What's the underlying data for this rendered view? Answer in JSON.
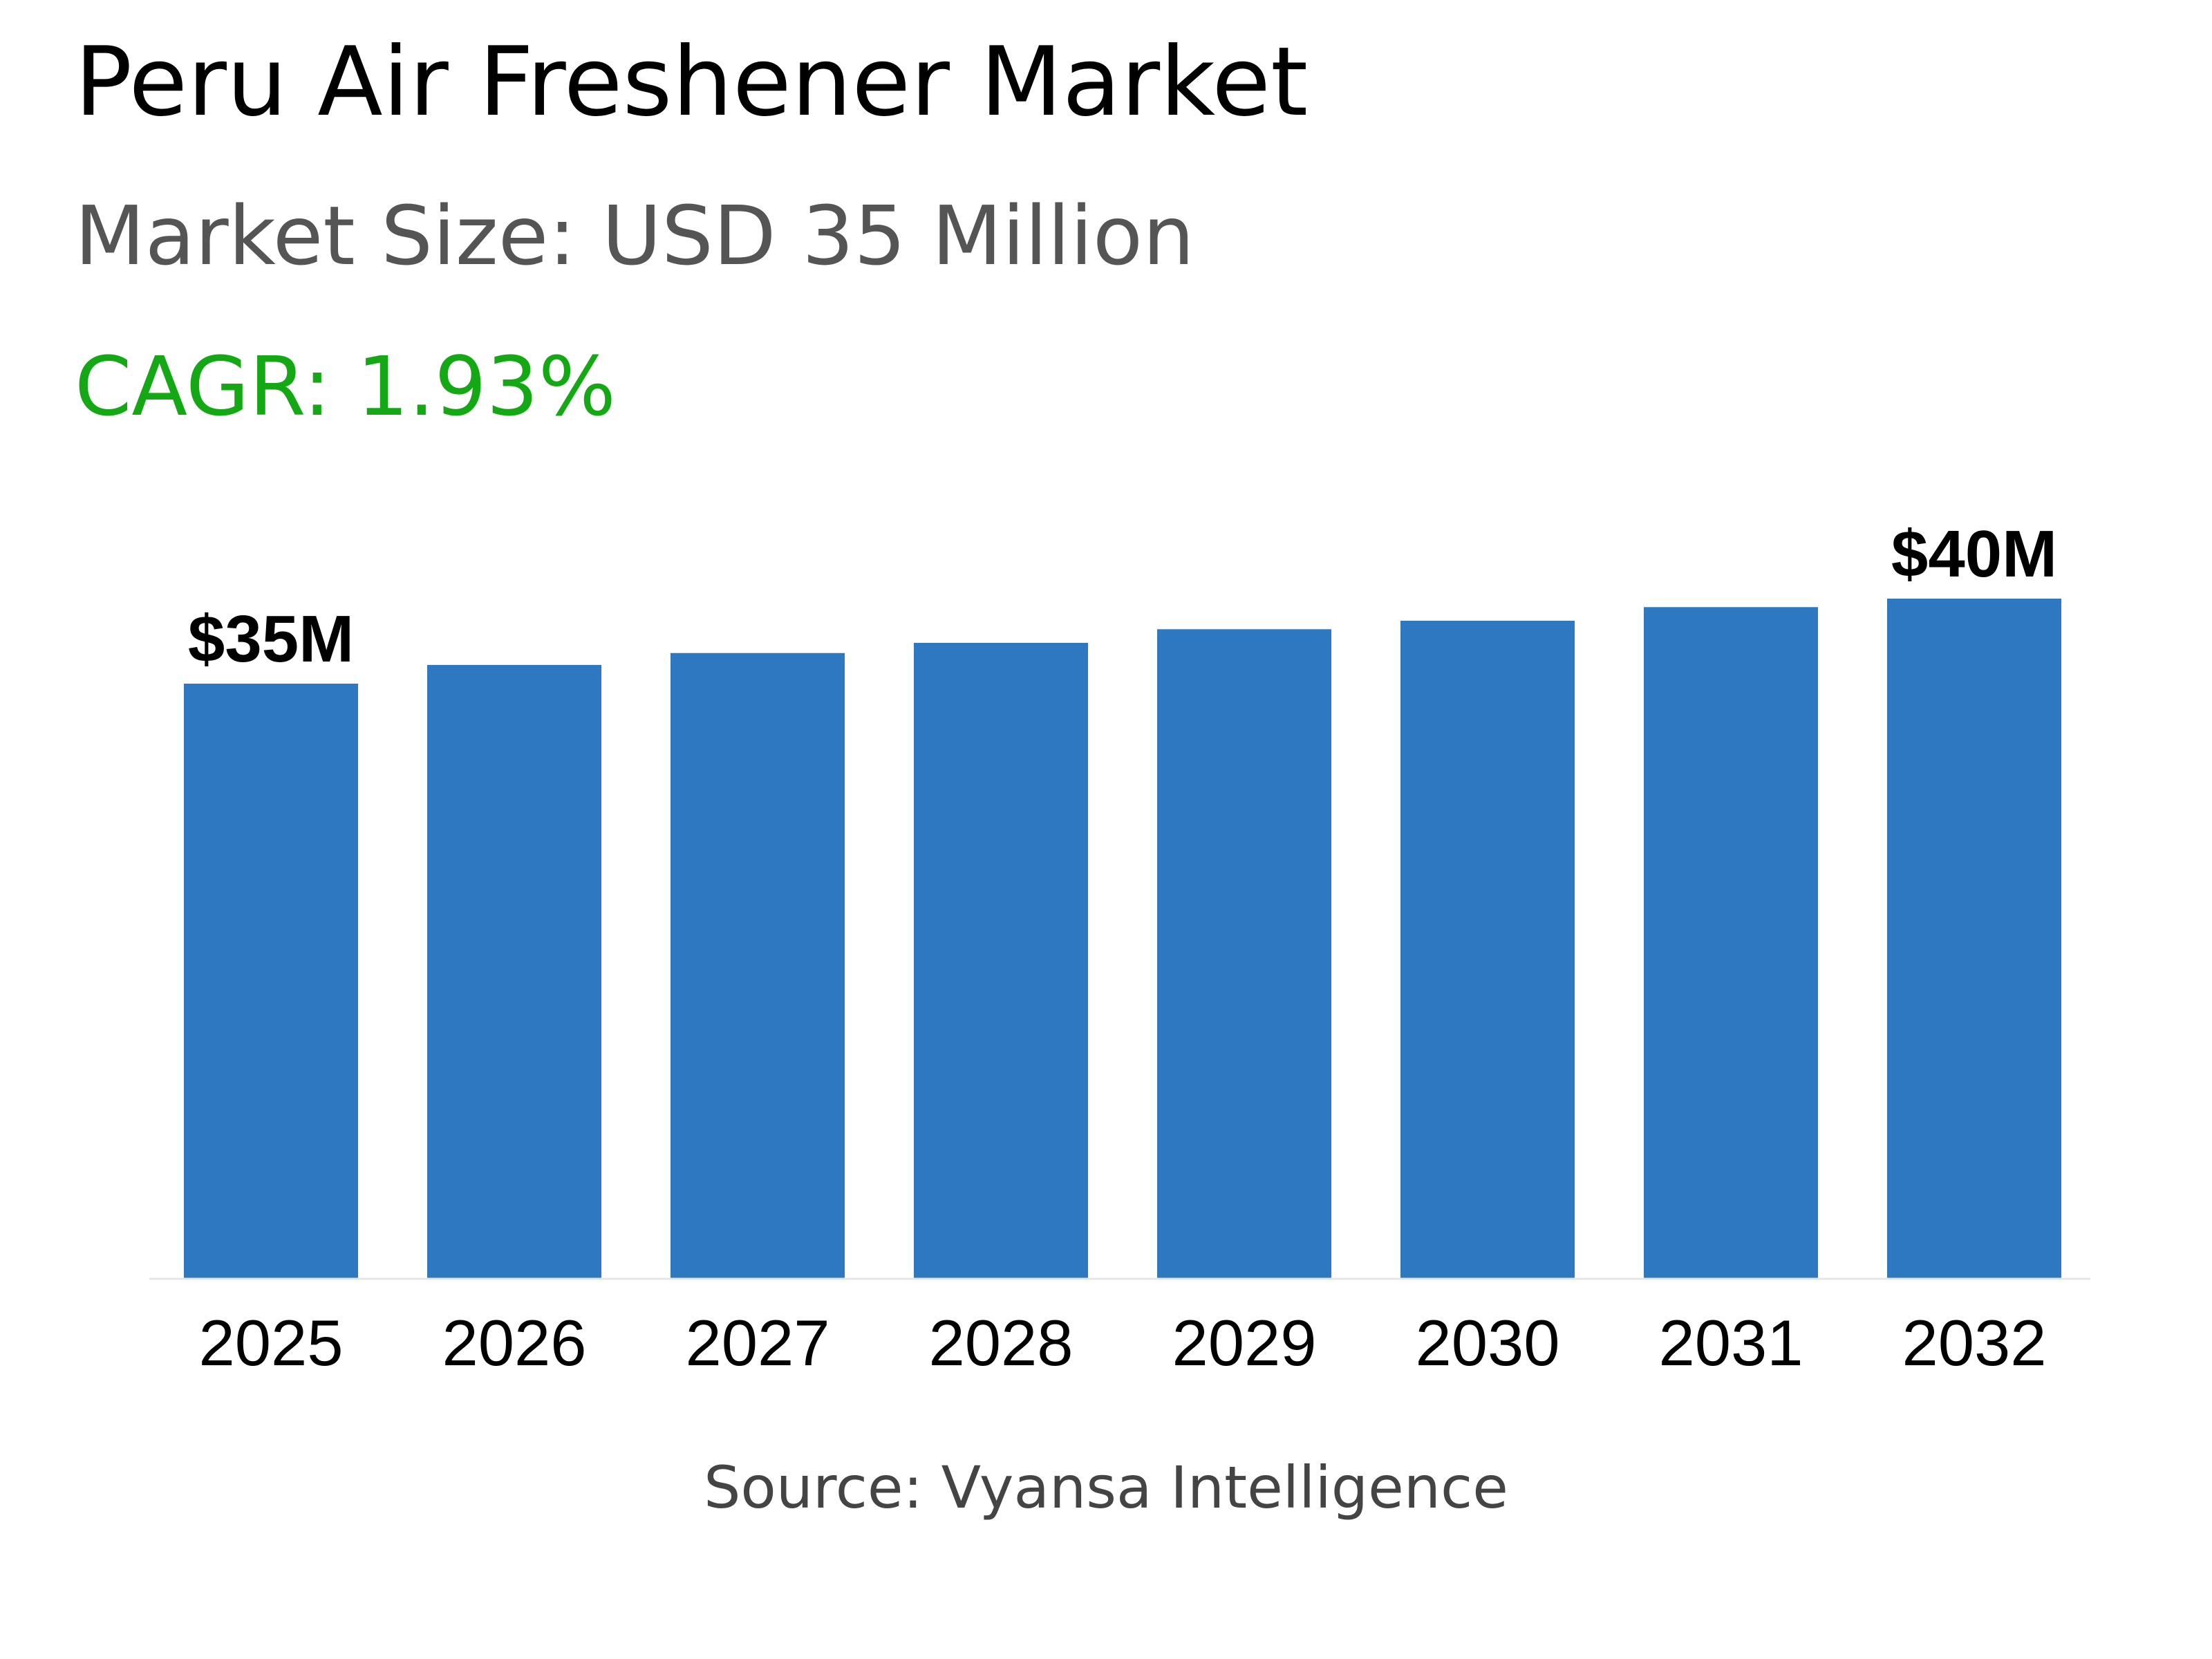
{
  "header": {
    "title": "Peru Air Freshener Market",
    "market_size": "Market Size: USD 35 Million",
    "cagr": "CAGR: 1.93%"
  },
  "footer": {
    "source": "Source: Vyansa Intelligence"
  },
  "colors": {
    "bar": "#2D78C0",
    "cagr": "#14A814",
    "label": "#000000",
    "baseline": "#E6E6E6"
  },
  "chart_data": {
    "type": "bar",
    "categories": [
      "2025",
      "2026",
      "2027",
      "2028",
      "2029",
      "2030",
      "2031",
      "2032"
    ],
    "values": [
      35,
      36.1,
      36.8,
      37.4,
      38.2,
      38.7,
      39.5,
      40
    ],
    "unit": "USD Million",
    "data_labels": [
      {
        "category": "2025",
        "text": "$35M"
      },
      {
        "category": "2032",
        "text": "$40M"
      }
    ],
    "ylim": [
      0,
      40
    ],
    "grid": false,
    "legend": "none"
  }
}
